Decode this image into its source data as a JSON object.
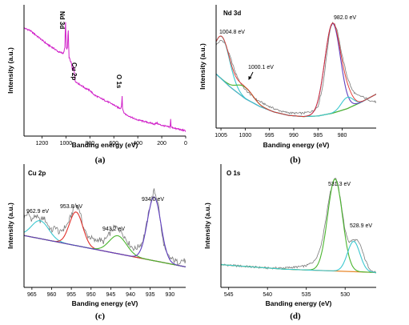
{
  "figure": {
    "colors": {
      "raw": "#d020c8",
      "rawGray": "#7a7a7a",
      "background": "#e8872a",
      "backgroundLine": "#b05c5c",
      "fitRed": "#e0302a",
      "fitGreen": "#4ab52e",
      "fitCyan": "#3cc8d0",
      "fitPurple": "#6040c0",
      "arrow": "#000000"
    }
  },
  "chart_data": [
    {
      "id": "a",
      "type": "line",
      "panel_label": "(a)",
      "title": "",
      "xlabel": "Banding energy (eV)",
      "ylabel": "Intensity (a.u.)",
      "xlim": [
        1350,
        0
      ],
      "xticks": [
        1200,
        1000,
        800,
        600,
        400,
        200,
        0
      ],
      "xtick_labels": [
        "1200",
        "1000",
        "800",
        "600",
        "400",
        "200",
        "0"
      ],
      "grid": false,
      "annotations": [
        {
          "text": "Nd 3d",
          "x": 1000,
          "rotated": true
        },
        {
          "text": "Cu 2p",
          "x": 945,
          "rotated": true
        },
        {
          "text": "O 1s",
          "x": 532,
          "rotated": true
        }
      ],
      "series": [
        {
          "color": "raw",
          "x": [
            1350,
            1300,
            1250,
            1200,
            1150,
            1100,
            1060,
            1020,
            1008,
            1004,
            1000,
            996,
            985,
            982,
            975,
            960,
            953,
            945,
            934,
            925,
            900,
            870,
            840,
            800,
            760,
            720,
            680,
            640,
            600,
            570,
            545,
            535,
            531,
            528,
            520,
            500,
            460,
            420,
            380,
            340,
            300,
            260,
            240,
            230,
            200,
            180,
            160,
            130,
            125,
            122,
            118,
            100,
            80,
            60,
            40,
            20,
            0
          ],
          "y": [
            0.86,
            0.84,
            0.8,
            0.76,
            0.72,
            0.69,
            0.66,
            0.65,
            0.7,
            0.96,
            0.8,
            0.68,
            0.7,
            0.9,
            0.62,
            0.58,
            0.56,
            0.5,
            0.55,
            0.42,
            0.4,
            0.38,
            0.36,
            0.34,
            0.3,
            0.28,
            0.26,
            0.24,
            0.22,
            0.2,
            0.19,
            0.21,
            0.32,
            0.2,
            0.16,
            0.14,
            0.12,
            0.1,
            0.09,
            0.08,
            0.07,
            0.06,
            0.07,
            0.06,
            0.05,
            0.045,
            0.04,
            0.035,
            0.11,
            0.04,
            0.03,
            0.03,
            0.02,
            0.02,
            0.01,
            0.01,
            0.0
          ]
        }
      ]
    },
    {
      "id": "b",
      "type": "line",
      "panel_label": "(b)",
      "title": "Nd 3d",
      "xlabel": "Banding energy (eV)",
      "ylabel": "Intensity (a.u.)",
      "xlim": [
        1006,
        973
      ],
      "xticks": [
        1005,
        1000,
        995,
        990,
        985,
        980
      ],
      "xtick_labels": [
        "1005",
        "1000",
        "995",
        "990",
        "985",
        "980"
      ],
      "grid": false,
      "annotations": [
        {
          "text": "1004.8 eV",
          "x": 1004.8
        },
        {
          "text": "1000.1 eV",
          "x": 1000.1,
          "arrow": true
        },
        {
          "text": "982.0 eV",
          "x": 982.0
        }
      ],
      "series": [
        {
          "role": "raw",
          "color": "rawGray",
          "x": [
            1006,
            1005.5,
            1005,
            1004.5,
            1004,
            1003,
            1002,
            1001,
            1000,
            999,
            998,
            996,
            994,
            992,
            990,
            988,
            986,
            985,
            984,
            983,
            982.5,
            982,
            981.5,
            981,
            980,
            979,
            978,
            977,
            976,
            975,
            974,
            973
          ],
          "y": [
            0.7,
            0.72,
            0.74,
            0.73,
            0.7,
            0.58,
            0.45,
            0.36,
            0.3,
            0.26,
            0.22,
            0.17,
            0.13,
            0.1,
            0.09,
            0.09,
            0.11,
            0.15,
            0.33,
            0.68,
            0.84,
            0.9,
            0.88,
            0.82,
            0.6,
            0.42,
            0.3,
            0.25,
            0.24,
            0.22,
            0.2,
            0.19
          ]
        },
        {
          "role": "background",
          "color": "background",
          "x": [
            1006,
            1003,
            1000,
            997,
            994,
            991,
            988,
            985,
            982,
            979,
            976,
            973
          ],
          "y": [
            0.44,
            0.32,
            0.22,
            0.15,
            0.1,
            0.07,
            0.06,
            0.065,
            0.09,
            0.13,
            0.19,
            0.26
          ]
        },
        {
          "role": "fit-peak-1004.8",
          "color": "fitCyan",
          "center": 1004.8,
          "height": 0.38,
          "width": 1.6
        },
        {
          "role": "fit-peak-1000.1",
          "color": "fitGreen",
          "center": 1000.1,
          "height": 0.1,
          "width": 1.7
        },
        {
          "role": "fit-peak-982.0",
          "color": "fitPurple",
          "center": 982.0,
          "height": 0.8,
          "width": 1.6
        },
        {
          "role": "fit-peak-979",
          "color": "fitCyan",
          "center": 979.0,
          "height": 0.1,
          "width": 1.2
        },
        {
          "role": "fit-envelope",
          "color": "fitRed",
          "envelope": true
        }
      ]
    },
    {
      "id": "c",
      "type": "line",
      "panel_label": "(c)",
      "title": "Cu 2p",
      "xlabel": "Banding energy (eV)",
      "ylabel": "Intensity (a.u.)",
      "xlim": [
        967,
        926
      ],
      "xticks": [
        965,
        960,
        955,
        950,
        945,
        940,
        935,
        930
      ],
      "xtick_labels": [
        "965",
        "960",
        "955",
        "950",
        "945",
        "940",
        "935",
        "930"
      ],
      "grid": false,
      "annotations": [
        {
          "text": "962.9 eV",
          "x": 962.9
        },
        {
          "text": "953.8 eV",
          "x": 953.8
        },
        {
          "text": "943.2 eV",
          "x": 943.2
        },
        {
          "text": "934.0 eV",
          "x": 934.0
        }
      ],
      "series": [
        {
          "role": "raw",
          "color": "rawGray",
          "x": [
            967,
            966,
            965,
            964,
            963,
            962,
            961,
            960,
            959,
            958,
            957,
            956,
            955,
            954,
            953,
            952,
            951,
            950,
            949,
            948,
            947,
            946,
            945,
            944,
            943,
            942,
            941,
            940,
            939,
            938,
            937,
            936,
            935,
            934,
            933,
            932,
            931,
            930,
            929,
            928,
            927,
            926
          ],
          "y": [
            0.58,
            0.62,
            0.56,
            0.6,
            0.55,
            0.58,
            0.52,
            0.46,
            0.5,
            0.44,
            0.48,
            0.52,
            0.6,
            0.7,
            0.66,
            0.5,
            0.42,
            0.4,
            0.37,
            0.39,
            0.36,
            0.4,
            0.45,
            0.5,
            0.48,
            0.44,
            0.38,
            0.33,
            0.3,
            0.32,
            0.36,
            0.5,
            0.7,
            0.82,
            0.72,
            0.42,
            0.26,
            0.22,
            0.2,
            0.18,
            0.2,
            0.19
          ]
        },
        {
          "role": "background",
          "color": "backgroundLine",
          "x": [
            967,
            926
          ],
          "y": [
            0.42,
            0.14
          ]
        },
        {
          "role": "fit-peak-962.9",
          "color": "fitCyan",
          "center": 962.9,
          "height": 0.16,
          "width": 2.2
        },
        {
          "role": "fit-peak-953.8",
          "color": "fitRed",
          "center": 953.8,
          "height": 0.3,
          "width": 1.7
        },
        {
          "role": "fit-peak-943.2",
          "color": "fitGreen",
          "center": 943.2,
          "height": 0.16,
          "width": 2.2
        },
        {
          "role": "fit-peak-934.0",
          "color": "fitPurple",
          "center": 934.0,
          "height": 0.57,
          "width": 1.7
        }
      ]
    },
    {
      "id": "d",
      "type": "line",
      "panel_label": "(d)",
      "title": "O 1s",
      "xlabel": "Banding energy (eV)",
      "ylabel": "Intensity (a.u.)",
      "xlim": [
        546,
        526
      ],
      "xticks": [
        545,
        540,
        535,
        530
      ],
      "xtick_labels": [
        "545",
        "540",
        "535",
        "530"
      ],
      "grid": false,
      "annotations": [
        {
          "text": "531.3 eV",
          "x": 531.3
        },
        {
          "text": "528.9 eV",
          "x": 528.9
        }
      ],
      "series": [
        {
          "role": "raw",
          "color": "rawGray",
          "x": [
            546,
            544,
            542,
            540,
            538,
            536,
            535,
            534,
            533.5,
            533,
            532.5,
            532,
            531.5,
            531.3,
            531,
            530.5,
            530,
            529.5,
            529,
            528.5,
            528,
            527.5,
            527,
            526.5,
            526
          ],
          "y": [
            0.16,
            0.15,
            0.14,
            0.13,
            0.13,
            0.14,
            0.15,
            0.19,
            0.25,
            0.36,
            0.56,
            0.78,
            0.91,
            0.94,
            0.9,
            0.7,
            0.46,
            0.36,
            0.38,
            0.38,
            0.33,
            0.22,
            0.14,
            0.1,
            0.09
          ]
        },
        {
          "role": "background",
          "color": "background",
          "x": [
            546,
            542,
            538,
            534,
            530,
            526
          ],
          "y": [
            0.16,
            0.14,
            0.12,
            0.11,
            0.1,
            0.09
          ]
        },
        {
          "role": "fit-peak-531.3",
          "color": "fitGreen",
          "center": 531.3,
          "height": 0.82,
          "width": 0.95
        },
        {
          "role": "fit-peak-528.9",
          "color": "fitCyan",
          "center": 528.9,
          "height": 0.27,
          "width": 0.8
        }
      ]
    }
  ]
}
